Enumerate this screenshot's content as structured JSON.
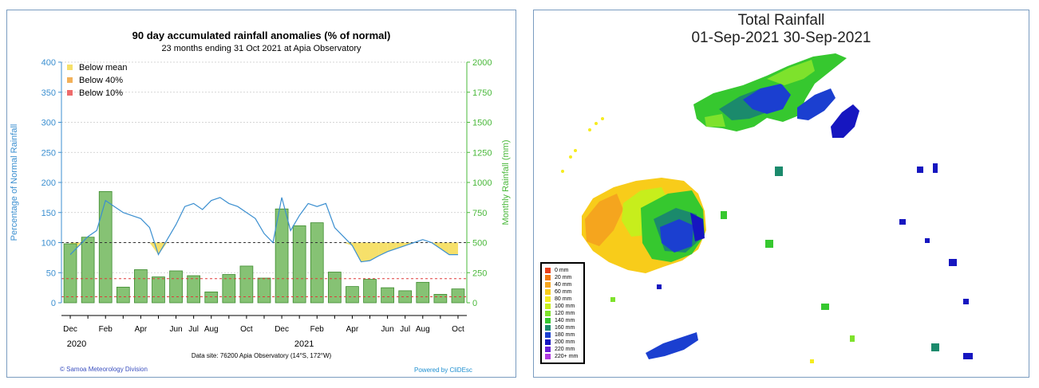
{
  "left_chart": {
    "title": "90 day accumulated rainfall anomalies (% of normal)",
    "subtitle": "23 months ending 31 Oct 2021 at Apia Observatory",
    "ylabel_left": "Percentage of Normal Rainfall",
    "ylabel_right": "Monthly Rainfall (mm)",
    "footnote": "Data site: 76200 Apia Observatory (14°S, 172°W)",
    "credit_left": "© Samoa Meteorology Division",
    "credit_right": "Powered by CliDEsc",
    "year_labels": [
      "2020",
      "2021"
    ],
    "legend": [
      {
        "label": "Below mean",
        "color": "#f6e06a"
      },
      {
        "label": "Below 40%",
        "color": "#f2b15a"
      },
      {
        "label": "Below 10%",
        "color": "#ee6b6b"
      }
    ],
    "colors": {
      "axis_left": "#3b8fd0",
      "axis_right": "#49b83a",
      "bar_fill": "#86c274",
      "bar_stroke": "#3d8b2e",
      "below_fill": "#f6e06a",
      "line": "#3b8fd0"
    }
  },
  "chart_data": [
    {
      "type": "bar",
      "title": "90 day accumulated rainfall anomalies (% of normal)",
      "xlabel": "",
      "ylabel": "Monthly Rainfall (mm)",
      "ylim": [
        0,
        2000
      ],
      "yticks": [
        0,
        250,
        500,
        750,
        1000,
        1250,
        1500,
        1750,
        2000
      ],
      "categories": [
        "Dec",
        "Jan",
        "Feb",
        "Mar",
        "Apr",
        "May",
        "Jun",
        "Jul",
        "Aug",
        "Sep",
        "Oct",
        "Nov",
        "Dec",
        "Jan",
        "Feb",
        "Mar",
        "Apr",
        "May",
        "Jun",
        "Jul",
        "Aug",
        "Sep",
        "Oct"
      ],
      "tick_labels": [
        "Dec",
        "Feb",
        "Apr",
        "Jun",
        "Jul",
        "Aug",
        "Oct",
        "Dec",
        "Feb",
        "Apr",
        "Jun",
        "Jul",
        "Aug",
        "Oct"
      ],
      "values": [
        490,
        545,
        925,
        130,
        275,
        215,
        265,
        225,
        90,
        235,
        305,
        205,
        780,
        640,
        665,
        255,
        135,
        195,
        125,
        100,
        170,
        70,
        115
      ]
    },
    {
      "type": "line",
      "ylabel": "Percentage of Normal Rainfall",
      "ylim": [
        0,
        400
      ],
      "yticks": [
        0,
        50,
        100,
        150,
        200,
        250,
        300,
        350,
        400
      ],
      "reference_lines": [
        100,
        40,
        10
      ],
      "x_months": [
        0,
        0.5,
        1,
        1.5,
        2,
        2.5,
        3,
        3.5,
        4,
        4.5,
        5,
        5.5,
        6,
        6.5,
        7,
        7.5,
        8,
        8.5,
        9,
        9.5,
        10,
        10.5,
        11,
        11.5,
        12,
        12.5,
        13,
        13.5,
        14,
        14.5,
        15,
        15.5,
        16,
        16.5,
        17,
        17.5,
        18,
        18.5,
        19,
        19.5,
        20,
        20.5,
        21,
        21.5,
        22
      ],
      "values": [
        80,
        95,
        110,
        120,
        170,
        160,
        150,
        145,
        140,
        125,
        80,
        105,
        130,
        160,
        165,
        155,
        170,
        175,
        165,
        160,
        150,
        140,
        115,
        100,
        175,
        120,
        145,
        165,
        160,
        165,
        125,
        110,
        95,
        68,
        70,
        78,
        85,
        90,
        95,
        100,
        105,
        100,
        90,
        80,
        80
      ]
    }
  ],
  "right_map": {
    "title_line1": "Total Rainfall",
    "title_line2": "01-Sep-2021 30-Sep-2021",
    "legend": [
      {
        "label": "0 mm",
        "color": "#e8401c"
      },
      {
        "label": "20 mm",
        "color": "#f07a12"
      },
      {
        "label": "40 mm",
        "color": "#f5a51e"
      },
      {
        "label": "60 mm",
        "color": "#f8cc1a"
      },
      {
        "label": "80 mm",
        "color": "#f5ec1f"
      },
      {
        "label": "100 mm",
        "color": "#c7ee1c"
      },
      {
        "label": "120 mm",
        "color": "#7ee22c"
      },
      {
        "label": "140 mm",
        "color": "#36c82f"
      },
      {
        "label": "160 mm",
        "color": "#1b8a6c"
      },
      {
        "label": "180 mm",
        "color": "#1b3fd0"
      },
      {
        "label": "200 mm",
        "color": "#1616c0"
      },
      {
        "label": "220 mm",
        "color": "#6a1fd8"
      },
      {
        "label": "220+ mm",
        "color": "#b03ae0"
      }
    ]
  }
}
